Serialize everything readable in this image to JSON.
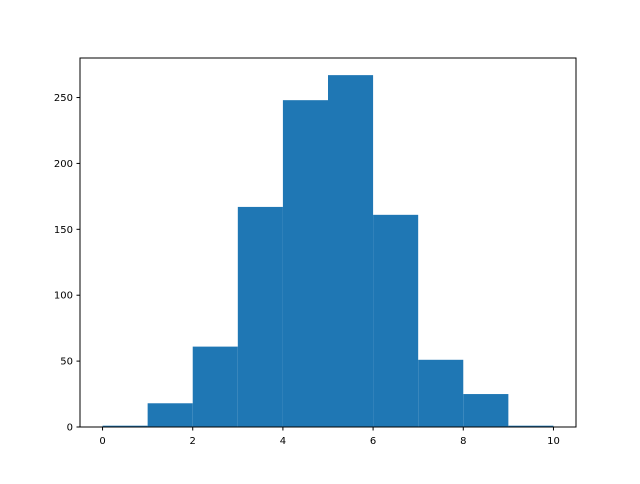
{
  "chart_data": {
    "type": "bar",
    "subtype": "histogram",
    "bin_edges": [
      0,
      1,
      2,
      3,
      4,
      5,
      6,
      7,
      8,
      9,
      10
    ],
    "values": [
      1,
      18,
      61,
      167,
      248,
      267,
      161,
      51,
      25,
      1
    ],
    "xlim": [
      -0.5,
      10.5
    ],
    "ylim": [
      0,
      280
    ],
    "xticks": [
      0,
      2,
      4,
      6,
      8,
      10
    ],
    "yticks": [
      0,
      50,
      100,
      150,
      200,
      250
    ],
    "title": "",
    "xlabel": "",
    "ylabel": "",
    "grid": false,
    "bar_color": "#1f77b4"
  }
}
